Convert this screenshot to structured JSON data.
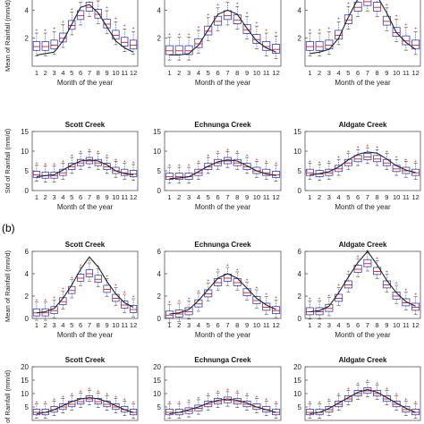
{
  "figure": {
    "section_b_label": "(b)",
    "ylabels": {
      "mean_a": "Mean of Rainfall (mm/d)",
      "std_a": "Std of Rainfall (mm/d)",
      "mean_b": "Mean of Rainfall (mm/d)",
      "std_b": "Std of Rainfall (mm/d)"
    }
  },
  "chart_data": [
    {
      "id": "a-mean-scott",
      "type": "line",
      "title": "",
      "xlabel": "Month of the year",
      "ylabel": "Mean of Rainfall (mm/d)",
      "x": [
        1,
        2,
        3,
        4,
        5,
        6,
        7,
        8,
        9,
        10,
        11,
        12
      ],
      "ylim": [
        0,
        6
      ],
      "yticks": [
        2,
        4
      ],
      "box_medians": [
        1.4,
        1.4,
        1.5,
        2.0,
        2.9,
        3.6,
        4.2,
        3.7,
        3.0,
        2.2,
        1.7,
        1.5
      ],
      "series": [
        {
          "values": [
            0.8,
            0.9,
            1.0,
            1.8,
            3.0,
            4.2,
            4.4,
            3.8,
            2.8,
            1.8,
            1.3,
            1.0
          ]
        }
      ]
    },
    {
      "id": "a-mean-echnunga",
      "type": "line",
      "title": "",
      "xlabel": "Month of the year",
      "ylabel": "",
      "x": [
        1,
        2,
        3,
        4,
        5,
        6,
        7,
        8,
        9,
        10,
        11,
        12
      ],
      "ylim": [
        0,
        6
      ],
      "yticks": [
        2,
        4
      ],
      "box_medians": [
        1.1,
        1.1,
        1.1,
        1.6,
        2.5,
        3.2,
        3.6,
        3.3,
        2.6,
        1.9,
        1.4,
        1.2
      ],
      "series": [
        {
          "values": [
            0.8,
            0.8,
            0.9,
            1.5,
            2.6,
            3.7,
            4.0,
            3.7,
            2.7,
            1.8,
            1.3,
            1.0
          ]
        }
      ]
    },
    {
      "id": "a-mean-aldgate",
      "type": "line",
      "title": "",
      "xlabel": "Month of the year",
      "ylabel": "",
      "x": [
        1,
        2,
        3,
        4,
        5,
        6,
        7,
        8,
        9,
        10,
        11,
        12
      ],
      "ylim": [
        0,
        6
      ],
      "yticks": [
        2,
        4
      ],
      "box_medians": [
        1.4,
        1.4,
        1.5,
        2.2,
        3.3,
        4.2,
        4.6,
        4.2,
        3.2,
        2.4,
        1.8,
        1.5
      ],
      "series": [
        {
          "values": [
            0.9,
            1.0,
            1.2,
            2.0,
            3.5,
            4.8,
            5.3,
            5.0,
            3.8,
            2.4,
            1.7,
            1.2
          ]
        }
      ]
    },
    {
      "id": "a-std-scott",
      "type": "line",
      "title": "Scott Creek",
      "xlabel": "Month of the year",
      "ylabel": "Std of Rainfall (mm/d)",
      "x": [
        1,
        2,
        3,
        4,
        5,
        6,
        7,
        8,
        9,
        10,
        11,
        12
      ],
      "ylim": [
        0,
        15
      ],
      "yticks": [
        0,
        5,
        10,
        15
      ],
      "box_medians": [
        4.0,
        3.8,
        3.8,
        4.5,
        6.0,
        7.0,
        7.5,
        7.0,
        6.0,
        5.0,
        4.5,
        4.2
      ],
      "series": [
        {
          "values": [
            3.5,
            3.8,
            4.0,
            5.2,
            6.5,
            7.5,
            7.8,
            7.5,
            6.5,
            5.0,
            4.3,
            4.0
          ]
        }
      ]
    },
    {
      "id": "a-std-echnunga",
      "type": "line",
      "title": "Echnunga Creek",
      "xlabel": "Month of the year",
      "ylabel": "",
      "x": [
        1,
        2,
        3,
        4,
        5,
        6,
        7,
        8,
        9,
        10,
        11,
        12
      ],
      "ylim": [
        0,
        15
      ],
      "yticks": [
        0,
        5,
        10,
        15
      ],
      "box_medians": [
        3.5,
        3.5,
        3.5,
        4.5,
        6.0,
        7.0,
        7.5,
        7.0,
        6.0,
        5.0,
        4.5,
        4.0
      ],
      "series": [
        {
          "values": [
            3.0,
            3.2,
            3.5,
            4.8,
            6.2,
            7.3,
            7.8,
            7.5,
            6.3,
            5.0,
            4.2,
            3.8
          ]
        }
      ]
    },
    {
      "id": "a-std-aldgate",
      "type": "line",
      "title": "Aldgate Creek",
      "xlabel": "Month of the year",
      "ylabel": "",
      "x": [
        1,
        2,
        3,
        4,
        5,
        6,
        7,
        8,
        9,
        10,
        11,
        12
      ],
      "ylim": [
        0,
        15
      ],
      "yticks": [
        0,
        5,
        10,
        15
      ],
      "box_medians": [
        4.5,
        4.2,
        4.5,
        5.5,
        7.0,
        8.0,
        8.5,
        8.0,
        7.0,
        5.5,
        5.0,
        4.5
      ],
      "series": [
        {
          "values": [
            4.0,
            4.3,
            4.8,
            6.0,
            7.8,
            9.2,
            9.8,
            9.5,
            8.0,
            6.3,
            5.2,
            4.6
          ]
        }
      ]
    },
    {
      "id": "b-mean-scott",
      "type": "line",
      "title": "Scott Creek",
      "xlabel": "Month of the year",
      "ylabel": "Mean of Rainfall (mm/d)",
      "x": [
        1,
        2,
        3,
        4,
        5,
        6,
        7,
        8,
        9,
        10,
        11,
        12
      ],
      "ylim": [
        0,
        6
      ],
      "yticks": [
        0,
        2,
        4,
        6
      ],
      "box_medians": [
        0.5,
        0.5,
        0.7,
        1.5,
        2.5,
        3.6,
        4.0,
        3.5,
        2.6,
        1.8,
        1.2,
        0.8
      ],
      "series": [
        {
          "values": [
            0.5,
            0.6,
            0.9,
            1.8,
            3.0,
            4.4,
            5.5,
            4.6,
            3.3,
            2.2,
            1.4,
            1.0
          ]
        }
      ]
    },
    {
      "id": "b-mean-echnunga",
      "type": "line",
      "title": "Echnunga Creek",
      "xlabel": "Month of the year",
      "ylabel": "",
      "x": [
        1,
        2,
        3,
        4,
        5,
        6,
        7,
        8,
        9,
        10,
        11,
        12
      ],
      "ylim": [
        0,
        6
      ],
      "yticks": [
        0,
        2,
        4,
        6
      ],
      "box_medians": [
        0.3,
        0.4,
        0.6,
        1.3,
        2.2,
        3.2,
        3.6,
        3.2,
        2.3,
        1.6,
        1.0,
        0.7
      ],
      "series": [
        {
          "values": [
            0.4,
            0.5,
            0.8,
            1.6,
            2.6,
            3.6,
            4.0,
            3.6,
            2.7,
            1.8,
            1.2,
            0.8
          ]
        }
      ]
    },
    {
      "id": "b-mean-aldgate",
      "type": "line",
      "title": "Aldgate Creek",
      "xlabel": "Month of the year",
      "ylabel": "",
      "x": [
        1,
        2,
        3,
        4,
        5,
        6,
        7,
        8,
        9,
        10,
        11,
        12
      ],
      "ylim": [
        0,
        6
      ],
      "yticks": [
        0,
        2,
        4,
        6
      ],
      "box_medians": [
        0.6,
        0.6,
        0.9,
        1.8,
        3.0,
        4.4,
        4.9,
        4.2,
        3.0,
        2.0,
        1.4,
        1.0
      ],
      "series": [
        {
          "values": [
            0.6,
            0.7,
            1.1,
            2.3,
            3.7,
            5.0,
            6.0,
            4.8,
            3.4,
            2.3,
            1.5,
            1.1
          ]
        }
      ]
    },
    {
      "id": "b-std-scott",
      "type": "line",
      "title": "Scott Creek",
      "xlabel": "",
      "ylabel": "Std of Rainfall (mm/d)",
      "x": [
        1,
        2,
        3,
        4,
        5,
        6,
        7,
        8,
        9,
        10,
        11,
        12
      ],
      "ylim": [
        0,
        20
      ],
      "yticks": [
        5,
        10,
        15,
        20
      ],
      "box_medians": [
        3,
        3,
        4,
        5,
        6,
        7,
        8,
        7,
        6,
        5,
        4,
        3
      ],
      "series": [
        {
          "values": [
            2.5,
            3.0,
            4.0,
            5.5,
            7.0,
            8.0,
            8.5,
            8.0,
            7.0,
            5.5,
            4.0,
            3.0
          ]
        }
      ]
    },
    {
      "id": "b-std-echnunga",
      "type": "line",
      "title": "Echnunga Creek",
      "xlabel": "",
      "ylabel": "",
      "x": [
        1,
        2,
        3,
        4,
        5,
        6,
        7,
        8,
        9,
        10,
        11,
        12
      ],
      "ylim": [
        0,
        20
      ],
      "yticks": [
        5,
        10,
        15,
        20
      ],
      "box_medians": [
        3,
        3,
        3.5,
        4.5,
        6,
        7,
        7.5,
        7,
        6,
        5,
        4,
        3
      ],
      "series": [
        {
          "values": [
            2.5,
            3.0,
            4.0,
            5.0,
            6.5,
            7.5,
            8.0,
            7.5,
            6.5,
            5.0,
            4.0,
            3.0
          ]
        }
      ]
    },
    {
      "id": "b-std-aldgate",
      "type": "line",
      "title": "Aldgate Creek",
      "xlabel": "",
      "ylabel": "",
      "x": [
        1,
        2,
        3,
        4,
        5,
        6,
        7,
        8,
        9,
        10,
        11,
        12
      ],
      "ylim": [
        0,
        20
      ],
      "yticks": [
        5,
        10,
        15,
        20
      ],
      "box_medians": [
        3,
        3,
        4,
        6,
        8,
        10,
        11,
        10,
        8,
        6,
        4,
        3
      ],
      "series": [
        {
          "values": [
            2.5,
            3.0,
            4.5,
            6.5,
            8.5,
            10.5,
            11.5,
            10.5,
            8.5,
            6.5,
            4.5,
            3.0
          ]
        }
      ]
    }
  ]
}
